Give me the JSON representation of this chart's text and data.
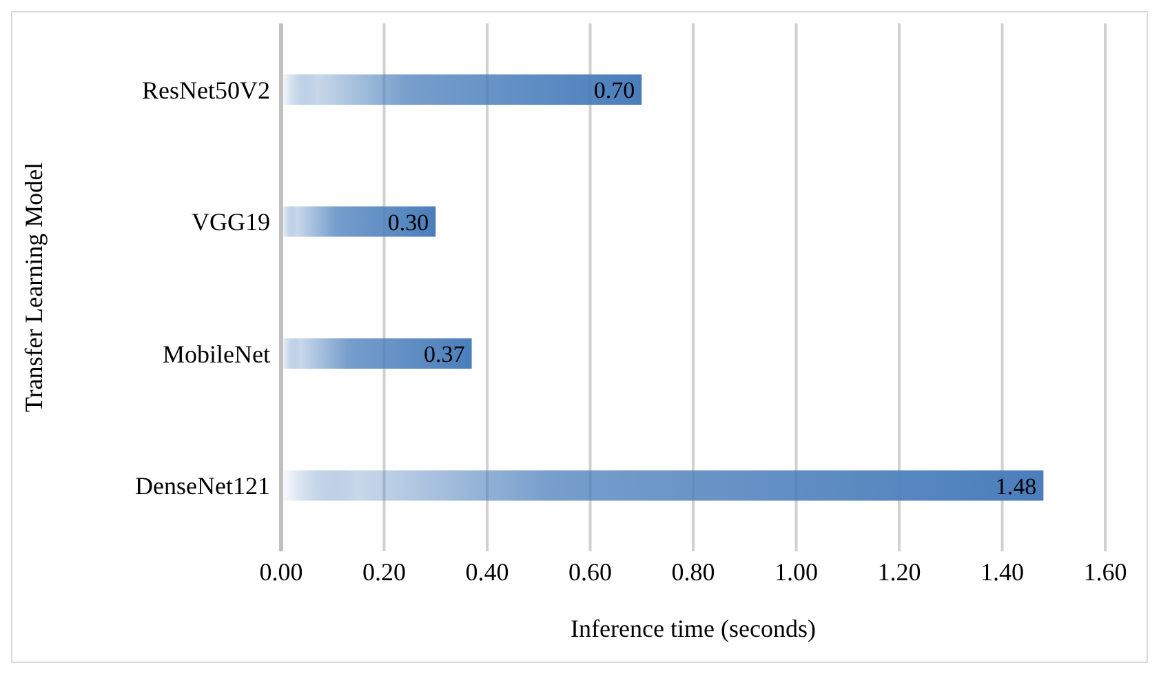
{
  "chart_data": {
    "type": "bar",
    "orientation": "horizontal",
    "xlabel": "Inference time (seconds)",
    "ylabel": "Transfer Learning Model",
    "categories": [
      "ResNet50V2",
      "VGG19",
      "MobileNet",
      "DenseNet121"
    ],
    "values": [
      0.7,
      0.3,
      0.37,
      1.48
    ],
    "value_labels": [
      "0.70",
      "0.30",
      "0.37",
      "1.48"
    ],
    "color": "#4a7ebb",
    "xlim": [
      0,
      1.6
    ],
    "xticks": [
      {
        "value": 0,
        "label": "0.00"
      },
      {
        "value": 0.2,
        "label": "0.20"
      },
      {
        "value": 0.4,
        "label": "0.40"
      },
      {
        "value": 0.6,
        "label": "0.60"
      },
      {
        "value": 0.8,
        "label": "0.80"
      },
      {
        "value": 1,
        "label": "1.00"
      },
      {
        "value": 1.2,
        "label": "1.20"
      },
      {
        "value": 1.4,
        "label": "1.40"
      },
      {
        "value": 1.6,
        "label": "1.60"
      }
    ],
    "grid": "x"
  }
}
